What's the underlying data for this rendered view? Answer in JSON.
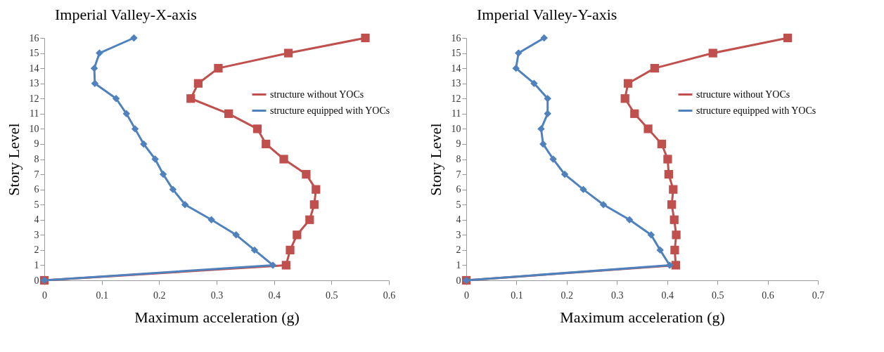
{
  "chart_data": [
    {
      "type": "line",
      "title": "Imperial Valley-X-axis",
      "xlabel": "Maximum acceleration (g)",
      "ylabel": "Story Level",
      "xlim": [
        0,
        0.6
      ],
      "xticks": [
        0,
        0.1,
        0.2,
        0.3,
        0.4,
        0.5,
        0.6
      ],
      "ylim": [
        0,
        16
      ],
      "yticks": [
        0,
        1,
        2,
        3,
        4,
        5,
        6,
        7,
        8,
        9,
        10,
        11,
        12,
        13,
        14,
        15,
        16
      ],
      "grid": false,
      "legend": "right",
      "line_style": "solid",
      "series": [
        {
          "name": "structure without YOCs",
          "color": "#c0504d",
          "marker": "square",
          "x": [
            0,
            0.421,
            0.428,
            0.44,
            0.462,
            0.47,
            0.473,
            0.456,
            0.417,
            0.386,
            0.371,
            0.321,
            0.255,
            0.268,
            0.303,
            0.425,
            0.559
          ],
          "values": [
            0,
            1,
            2,
            3,
            4,
            5,
            6,
            7,
            8,
            9,
            10,
            11,
            12,
            13,
            14,
            15,
            16
          ]
        },
        {
          "name": "structure equipped with YOCs",
          "color": "#4f81bd",
          "marker": "diamond",
          "x": [
            0,
            0.398,
            0.366,
            0.334,
            0.291,
            0.245,
            0.224,
            0.207,
            0.193,
            0.173,
            0.158,
            0.143,
            0.125,
            0.088,
            0.087,
            0.096,
            0.156
          ],
          "values": [
            0,
            1,
            2,
            3,
            4,
            5,
            6,
            7,
            8,
            9,
            10,
            11,
            12,
            13,
            14,
            15,
            16
          ]
        }
      ]
    },
    {
      "type": "line",
      "title": "Imperial Valley-Y-axis",
      "xlabel": "Maximum acceleration (g)",
      "ylabel": "Story Level",
      "xlim": [
        0,
        0.7
      ],
      "xticks": [
        0,
        0.1,
        0.2,
        0.3,
        0.4,
        0.5,
        0.6,
        0.7
      ],
      "ylim": [
        0,
        16
      ],
      "yticks": [
        0,
        1,
        2,
        3,
        4,
        5,
        6,
        7,
        8,
        9,
        10,
        11,
        12,
        13,
        14,
        15,
        16
      ],
      "grid": false,
      "legend": "right",
      "line_style": "solid",
      "series": [
        {
          "name": "structure without YOCs",
          "color": "#c0504d",
          "marker": "square",
          "x": [
            0,
            0.417,
            0.415,
            0.418,
            0.414,
            0.409,
            0.412,
            0.403,
            0.401,
            0.389,
            0.362,
            0.335,
            0.316,
            0.322,
            0.375,
            0.491,
            0.64
          ],
          "values": [
            0,
            1,
            2,
            3,
            4,
            5,
            6,
            7,
            8,
            9,
            10,
            11,
            12,
            13,
            14,
            15,
            16
          ]
        },
        {
          "name": "structure equipped with YOCs",
          "color": "#4f81bd",
          "marker": "diamond",
          "x": [
            0,
            0.405,
            0.386,
            0.368,
            0.325,
            0.273,
            0.233,
            0.196,
            0.173,
            0.153,
            0.149,
            0.162,
            0.162,
            0.135,
            0.099,
            0.104,
            0.155
          ],
          "values": [
            0,
            1,
            2,
            3,
            4,
            5,
            6,
            7,
            8,
            9,
            10,
            11,
            12,
            13,
            14,
            15,
            16
          ]
        }
      ]
    }
  ]
}
